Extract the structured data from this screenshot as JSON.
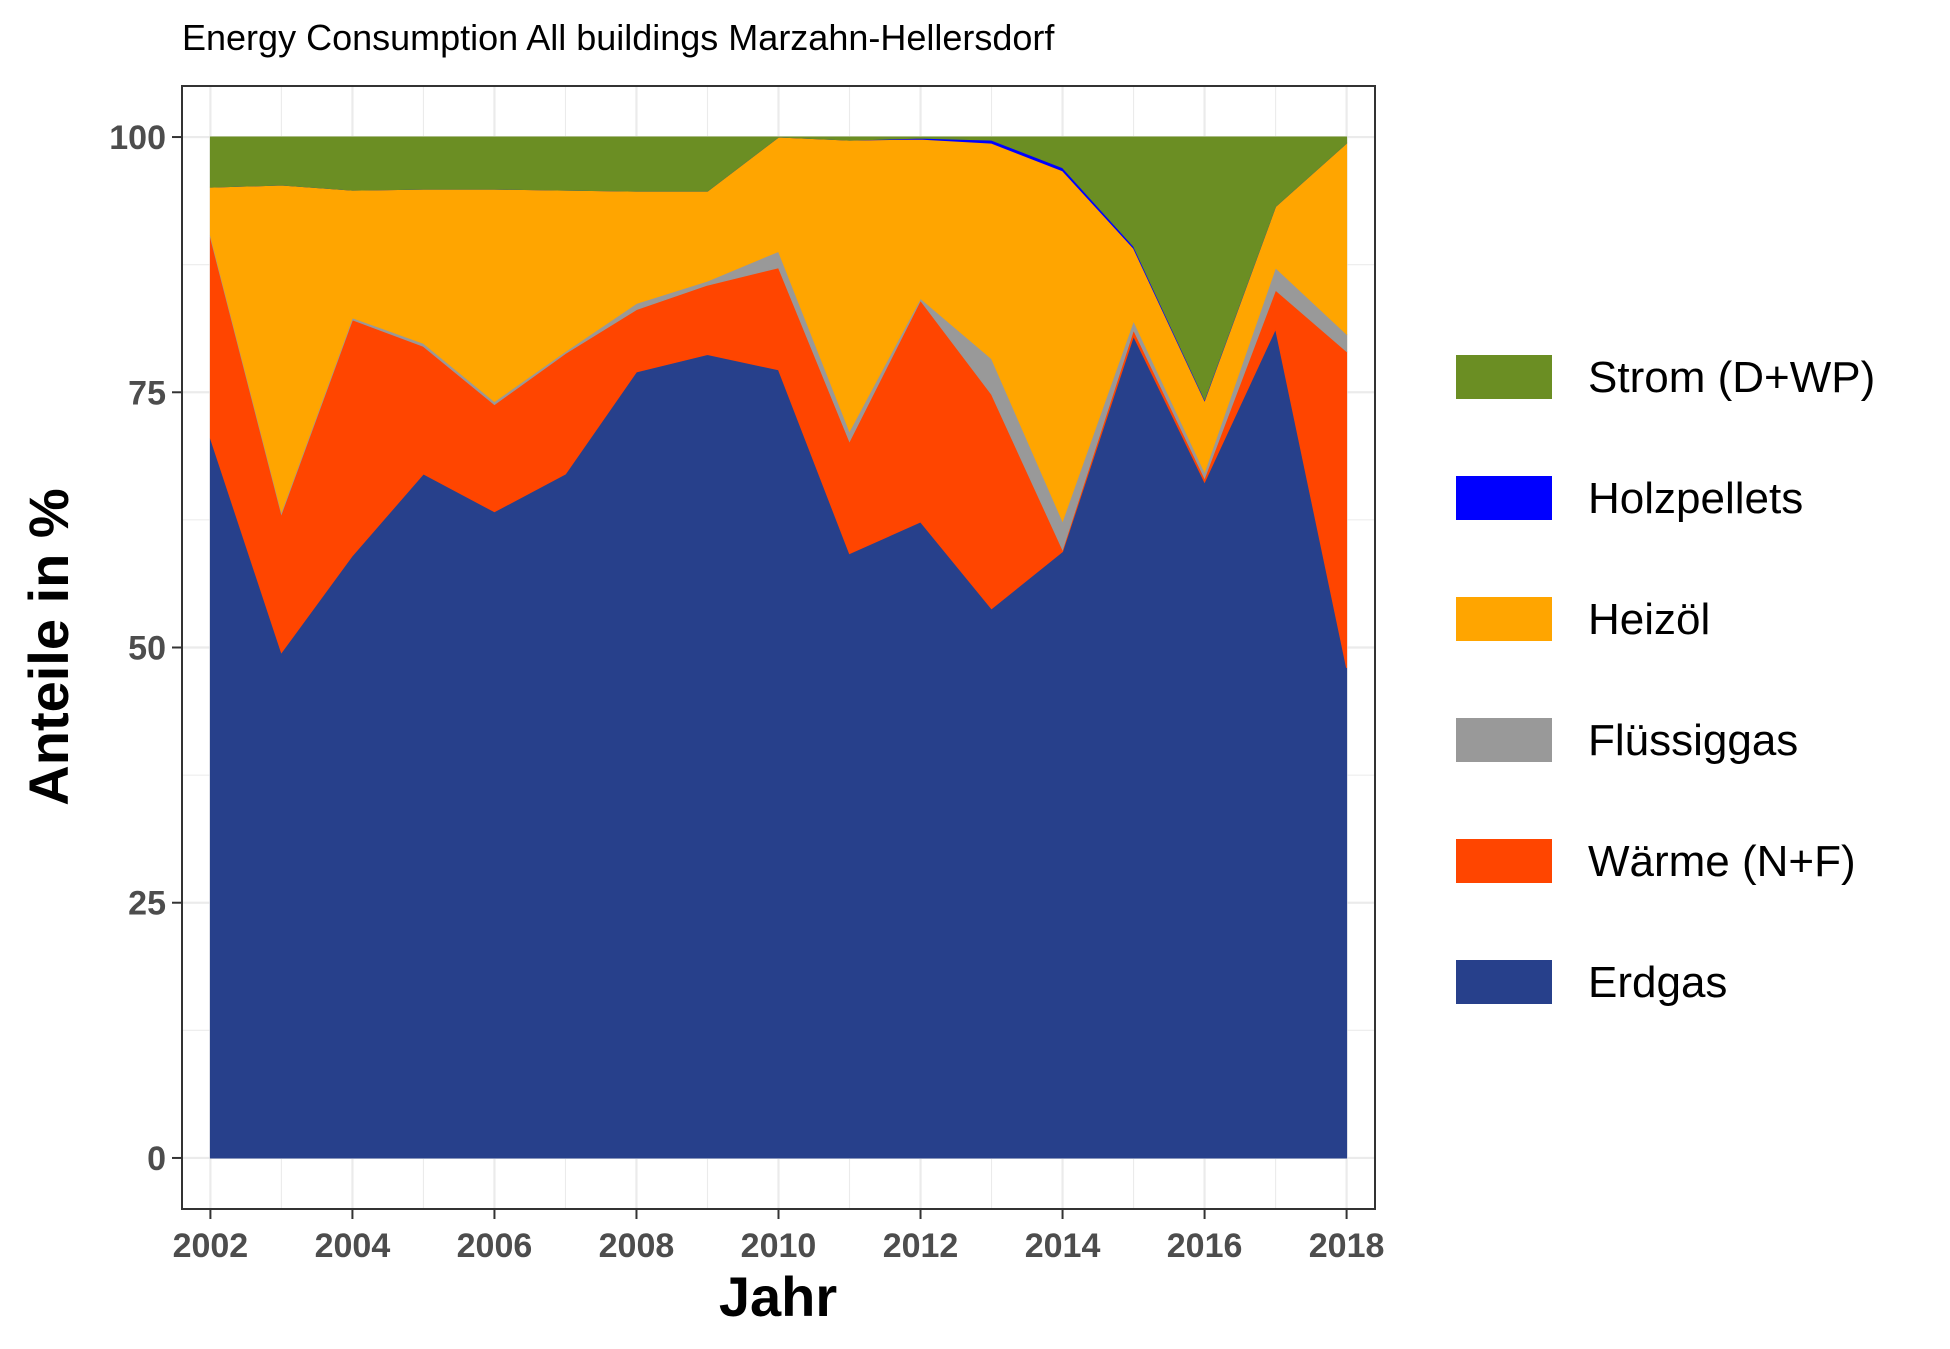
{
  "chart_data": {
    "type": "area",
    "stacked": true,
    "title": "Energy Consumption All buildings Marzahn-Hellersdorf",
    "xlabel": "Jahr",
    "ylabel": "Anteile in %",
    "xlim": [
      2001.6,
      2018.4
    ],
    "ylim": [
      -5,
      105
    ],
    "x_ticks": [
      2002,
      2004,
      2006,
      2008,
      2010,
      2012,
      2014,
      2016,
      2018
    ],
    "x_tick_labels": [
      "2002",
      "2004",
      "2006",
      "2008",
      "2010",
      "2012",
      "2014",
      "2016",
      "2018"
    ],
    "y_ticks": [
      0,
      25,
      50,
      75,
      100
    ],
    "y_tick_labels": [
      "0",
      "25",
      "50",
      "75",
      "100"
    ],
    "grid": true,
    "legend_position": "right",
    "x": [
      2002,
      2003,
      2004,
      2005,
      2006,
      2007,
      2008,
      2009,
      2010,
      2011,
      2012,
      2013,
      2014,
      2015,
      2016,
      2017,
      2018
    ],
    "series": [
      {
        "name": "Erdgas",
        "color": "#27408B",
        "values": [
          70.5,
          49.5,
          59.0,
          67.0,
          63.3,
          67.0,
          77.0,
          78.7,
          77.2,
          59.2,
          62.3,
          53.8,
          59.4,
          80.5,
          66.2,
          81.2,
          48.0
        ]
      },
      {
        "name": "Wärme (N+F)",
        "color": "#FF4500",
        "values": [
          19.7,
          13.6,
          23.1,
          12.5,
          10.5,
          11.8,
          6.1,
          6.8,
          10.0,
          11.0,
          21.7,
          21.0,
          0.2,
          0.6,
          0.4,
          3.8,
          31.0
        ]
      },
      {
        "name": "Flüssiggas",
        "color": "#999999",
        "values": [
          0.2,
          0.2,
          0.2,
          0.3,
          0.3,
          0.2,
          0.6,
          0.4,
          1.6,
          1.0,
          0.2,
          3.5,
          2.8,
          0.9,
          0.6,
          2.2,
          1.7
        ]
      },
      {
        "name": "Heizöl",
        "color": "#FFA500",
        "values": [
          4.7,
          32.0,
          12.5,
          15.1,
          20.8,
          15.8,
          11.0,
          8.8,
          11.2,
          28.5,
          15.6,
          21.1,
          34.3,
          7.1,
          7.0,
          6.0,
          18.7
        ]
      },
      {
        "name": "Holzpellets",
        "color": "#0000FF",
        "values": [
          0.0,
          0.0,
          0.0,
          0.0,
          0.0,
          0.0,
          0.0,
          0.0,
          0.0,
          0.0,
          0.1,
          0.3,
          0.3,
          0.2,
          0.1,
          0.0,
          0.0
        ]
      },
      {
        "name": "Strom (D+WP)",
        "color": "#6B8E23",
        "values": [
          4.9,
          4.7,
          5.2,
          5.1,
          5.1,
          5.2,
          5.3,
          5.3,
          0.0,
          0.3,
          0.1,
          0.3,
          3.0,
          10.7,
          25.7,
          6.8,
          0.6
        ]
      }
    ],
    "legend_order": [
      "Strom (D+WP)",
      "Holzpellets",
      "Heizöl",
      "Flüssiggas",
      "Wärme (N+F)",
      "Erdgas"
    ]
  }
}
